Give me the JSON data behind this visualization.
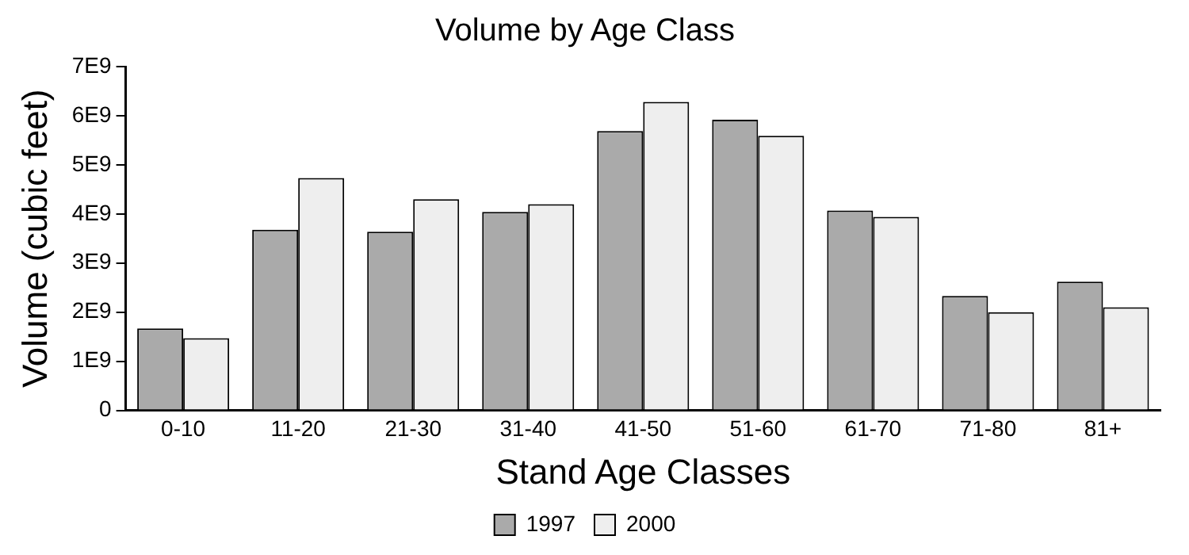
{
  "chart_data": {
    "type": "bar",
    "title": "Volume by Age Class",
    "xlabel": "Stand Age Classes",
    "ylabel": "Volume (cubic feet)",
    "categories": [
      "0-10",
      "11-20",
      "21-30",
      "31-40",
      "41-50",
      "51-60",
      "61-70",
      "71-80",
      "81+"
    ],
    "series": [
      {
        "name": "1997",
        "color": "#aaaaaa",
        "values": [
          1670000000.0,
          3680000000.0,
          3640000000.0,
          4040000000.0,
          5690000000.0,
          5920000000.0,
          4070000000.0,
          2330000000.0,
          2620000000.0
        ]
      },
      {
        "name": "2000",
        "color": "#eeeeee",
        "values": [
          1470000000.0,
          4730000000.0,
          4300000000.0,
          4200000000.0,
          6280000000.0,
          5590000000.0,
          3940000000.0,
          2000000000.0,
          2100000000.0
        ]
      }
    ],
    "ylim": [
      0,
      7000000000.0
    ],
    "yticks": [
      {
        "value": 0,
        "label": "0"
      },
      {
        "value": 1000000000.0,
        "label": "1E9"
      },
      {
        "value": 2000000000.0,
        "label": "2E9"
      },
      {
        "value": 3000000000.0,
        "label": "3E9"
      },
      {
        "value": 4000000000.0,
        "label": "4E9"
      },
      {
        "value": 5000000000.0,
        "label": "5E9"
      },
      {
        "value": 6000000000.0,
        "label": "6E9"
      },
      {
        "value": 7000000000.0,
        "label": "7E9"
      }
    ],
    "grid": false,
    "legend": "bottom"
  }
}
